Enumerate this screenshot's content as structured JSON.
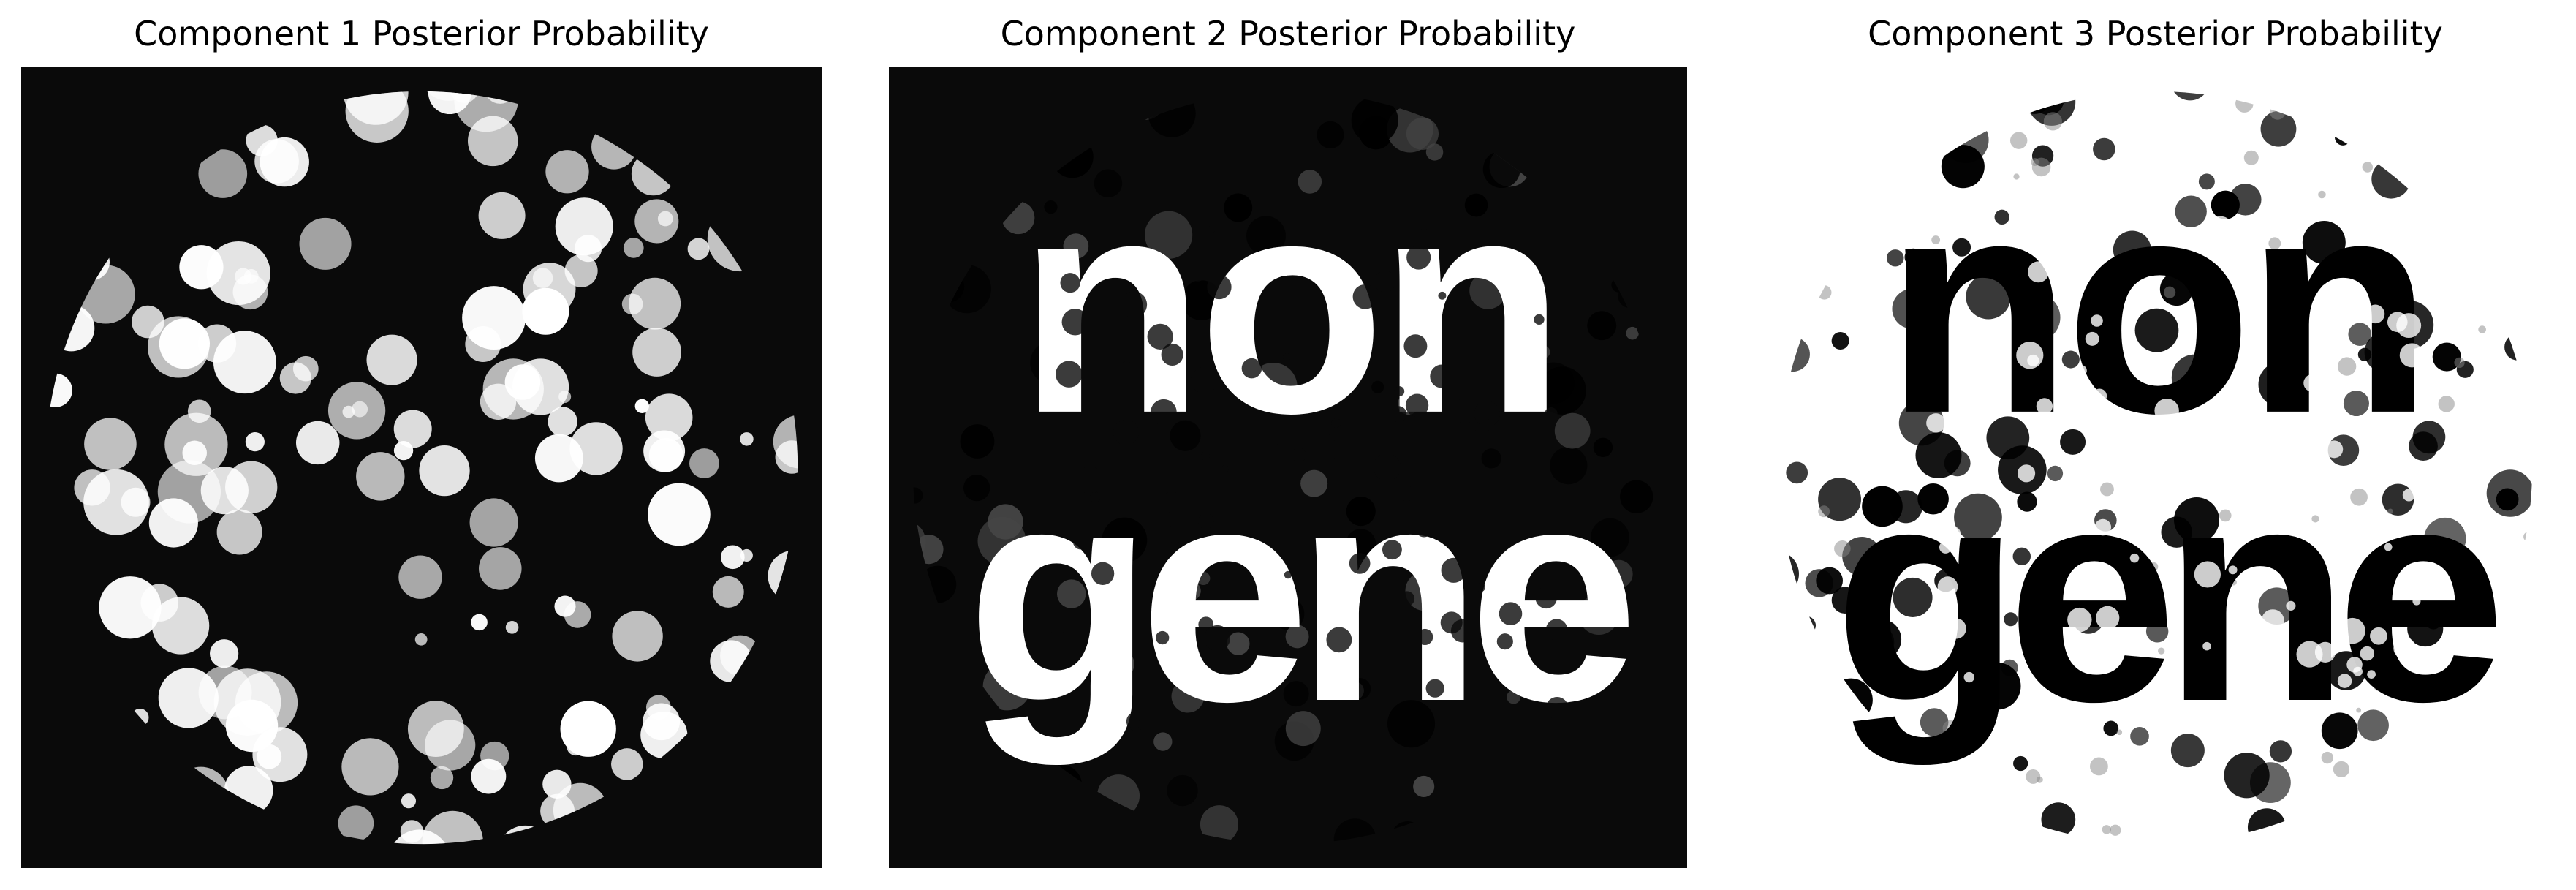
{
  "panels": [
    {
      "title": "Component 1 Posterior Probability",
      "background": "#0a0a0a",
      "foreground": "#ffffff"
    },
    {
      "title": "Component 2 Posterior Probability",
      "background": "#0a0a0a",
      "foreground": "#ffffff",
      "pattern_text": [
        "non",
        "gene"
      ]
    },
    {
      "title": "Component 3 Posterior Probability",
      "background": "#ffffff",
      "foreground": "#000000",
      "pattern_text": [
        "non",
        "gene"
      ]
    }
  ]
}
